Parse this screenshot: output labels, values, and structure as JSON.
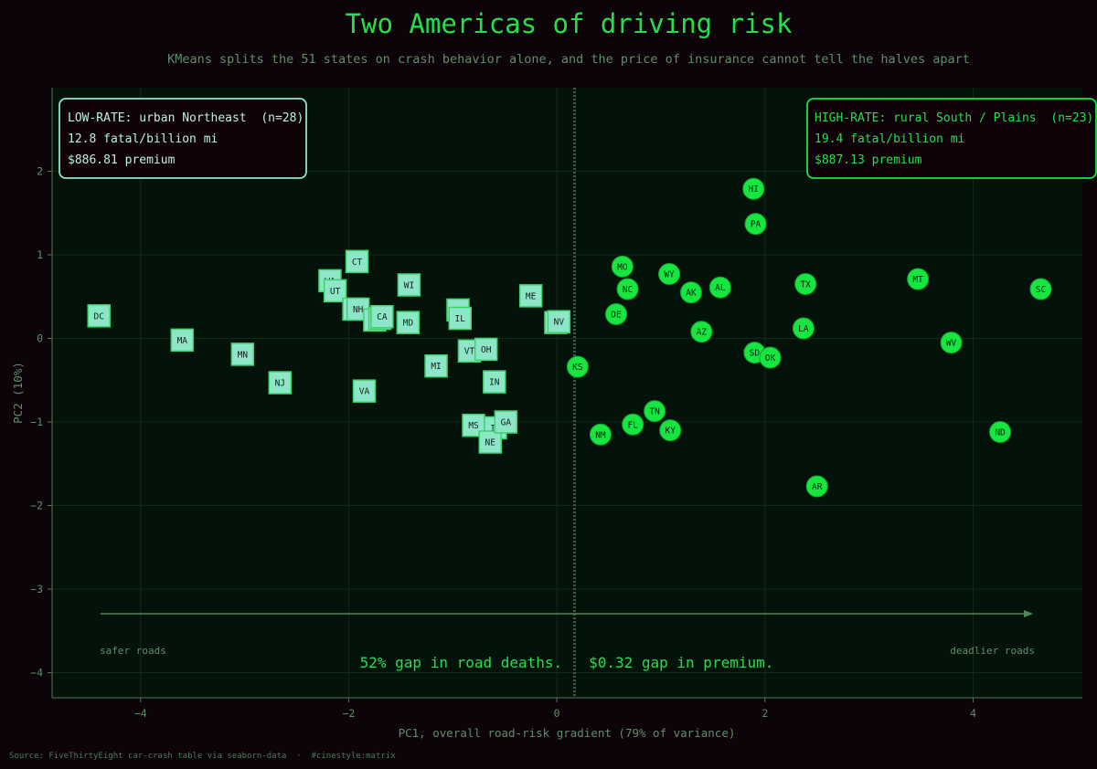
{
  "page": {
    "title": "Two Americas of driving risk",
    "subtitle": "KMeans splits the 51 states on crash behavior alone, and the price of insurance cannot tell the halves apart",
    "source": "Source: FiveThirtyEight car-crash table via seaborn-data  ·  #cinestyle:matrix"
  },
  "colors": {
    "background": "#0c0408",
    "plot_bg": "#04130a",
    "low_cluster": "#8ee6c8",
    "high_cluster": "#16e63f",
    "text_dim": "#5f8f6a",
    "accent": "#22e04a"
  },
  "legend_boxes": {
    "low": {
      "title": "LOW-RATE: urban Northeast  (n=28)",
      "line1": "12.8 fatal/billion mi",
      "line2": "$886.81 premium"
    },
    "high": {
      "title": "HIGH-RATE: rural South / Plains  (n=23)",
      "line1": "19.4 fatal/billion mi",
      "line2": "$887.13 premium"
    }
  },
  "annotations": {
    "safer": "safer roads",
    "deadlier": "deadlier roads",
    "punchline": "52% gap in road deaths.   $0.32 gap in premium."
  },
  "chart_data": {
    "type": "scatter",
    "title": "Two Americas of driving risk",
    "xlabel": "PC1, overall road-risk gradient (79% of variance)",
    "ylabel": "PC2 (10%)",
    "xlim": [
      -4.85,
      5.05
    ],
    "ylim": [
      -4.3,
      3.0
    ],
    "xticks": [
      -4,
      -2,
      0,
      2,
      4
    ],
    "yticks": [
      -4,
      -3,
      -2,
      -1,
      0,
      1,
      2
    ],
    "divider_x": 0.17,
    "grid": true,
    "series": [
      {
        "name": "LOW-RATE: urban Northeast",
        "marker": "square",
        "points": [
          {
            "label": "DC",
            "x": -4.4,
            "y": 0.27
          },
          {
            "label": "MA",
            "x": -3.6,
            "y": -0.02
          },
          {
            "label": "MN",
            "x": -3.02,
            "y": -0.19
          },
          {
            "label": "NJ",
            "x": -2.66,
            "y": -0.53
          },
          {
            "label": "WA",
            "x": -2.18,
            "y": 0.69
          },
          {
            "label": "UT",
            "x": -2.13,
            "y": 0.57
          },
          {
            "label": "CT",
            "x": -1.92,
            "y": 0.92
          },
          {
            "label": "RI",
            "x": -1.95,
            "y": 0.35
          },
          {
            "label": "NH",
            "x": -1.91,
            "y": 0.35
          },
          {
            "label": "VA",
            "x": -1.85,
            "y": -0.63
          },
          {
            "label": "NY",
            "x": -1.75,
            "y": 0.22
          },
          {
            "label": "OR",
            "x": -1.7,
            "y": 0.24
          },
          {
            "label": "CA",
            "x": -1.68,
            "y": 0.26
          },
          {
            "label": "WI",
            "x": -1.42,
            "y": 0.64
          },
          {
            "label": "MD",
            "x": -1.43,
            "y": 0.19
          },
          {
            "label": "MI",
            "x": -1.16,
            "y": -0.33
          },
          {
            "label": "CO",
            "x": -0.95,
            "y": 0.34
          },
          {
            "label": "IL",
            "x": -0.93,
            "y": 0.24
          },
          {
            "label": "VT",
            "x": -0.84,
            "y": -0.15
          },
          {
            "label": "MS",
            "x": -0.8,
            "y": -1.04
          },
          {
            "label": "OH",
            "x": -0.68,
            "y": -0.13
          },
          {
            "label": "IN",
            "x": -0.6,
            "y": -0.52
          },
          {
            "label": "IA",
            "x": -0.59,
            "y": -1.07
          },
          {
            "label": "NE",
            "x": -0.64,
            "y": -1.24
          },
          {
            "label": "GA",
            "x": -0.49,
            "y": -1.0
          },
          {
            "label": "ME",
            "x": -0.25,
            "y": 0.51
          },
          {
            "label": "ID",
            "x": -0.01,
            "y": 0.19
          },
          {
            "label": "NV",
            "x": 0.02,
            "y": 0.2
          }
        ]
      },
      {
        "name": "HIGH-RATE: rural South / Plains",
        "marker": "circle",
        "points": [
          {
            "label": "KS",
            "x": 0.2,
            "y": -0.34
          },
          {
            "label": "NM",
            "x": 0.42,
            "y": -1.15
          },
          {
            "label": "DE",
            "x": 0.57,
            "y": 0.29
          },
          {
            "label": "MO",
            "x": 0.63,
            "y": 0.86
          },
          {
            "label": "NC",
            "x": 0.68,
            "y": 0.59
          },
          {
            "label": "FL",
            "x": 0.73,
            "y": -1.03
          },
          {
            "label": "TN",
            "x": 0.94,
            "y": -0.87
          },
          {
            "label": "WY",
            "x": 1.08,
            "y": 0.77
          },
          {
            "label": "KY",
            "x": 1.09,
            "y": -1.1
          },
          {
            "label": "AK",
            "x": 1.29,
            "y": 0.55
          },
          {
            "label": "AZ",
            "x": 1.39,
            "y": 0.08
          },
          {
            "label": "AL",
            "x": 1.57,
            "y": 0.61
          },
          {
            "label": "HI",
            "x": 1.89,
            "y": 1.79
          },
          {
            "label": "PA",
            "x": 1.91,
            "y": 1.37
          },
          {
            "label": "SD",
            "x": 1.9,
            "y": -0.17
          },
          {
            "label": "OK",
            "x": 2.05,
            "y": -0.23
          },
          {
            "label": "LA",
            "x": 2.37,
            "y": 0.12
          },
          {
            "label": "TX",
            "x": 2.39,
            "y": 0.65
          },
          {
            "label": "AR",
            "x": 2.5,
            "y": -1.77
          },
          {
            "label": "MT",
            "x": 3.47,
            "y": 0.71
          },
          {
            "label": "WV",
            "x": 3.79,
            "y": -0.05
          },
          {
            "label": "ND",
            "x": 4.26,
            "y": -1.12
          },
          {
            "label": "SC",
            "x": 4.65,
            "y": 0.59
          }
        ]
      }
    ]
  }
}
